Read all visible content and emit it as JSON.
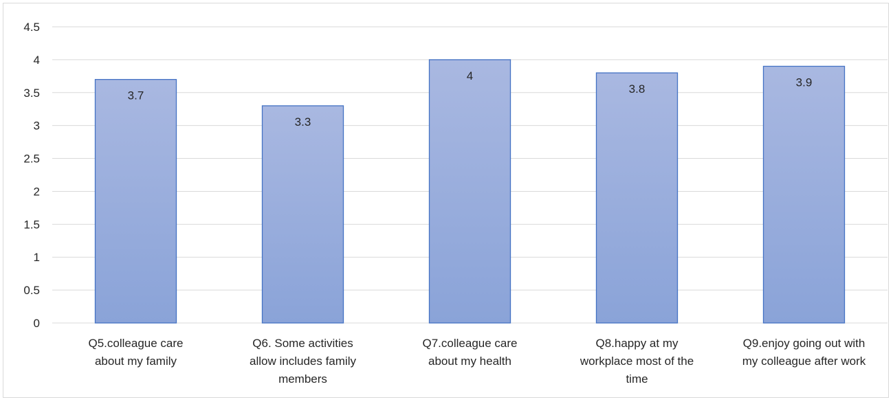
{
  "chart_data": {
    "type": "bar",
    "title": "",
    "xlabel": "",
    "ylabel": "",
    "ylim": [
      0,
      4.5
    ],
    "yticks": [
      "0",
      "0.5",
      "1",
      "1.5",
      "2",
      "2.5",
      "3",
      "3.5",
      "4",
      "4.5"
    ],
    "grid": true,
    "legend": "none",
    "categories": [
      [
        "Q5.colleague care",
        "about my family"
      ],
      [
        "Q6. Some activities",
        "allow includes family",
        "members"
      ],
      [
        "Q7.colleague care",
        "about my health"
      ],
      [
        "Q8.happy at my",
        "workplace most of the",
        "time"
      ],
      [
        "Q9.enjoy going out with",
        "my colleague after work"
      ]
    ],
    "values": [
      3.7,
      3.3,
      4,
      3.8,
      3.9
    ],
    "data_labels": [
      "3.7",
      "3.3",
      "4",
      "3.8",
      "3.9"
    ],
    "colors": {
      "bar_fill_top": "#a9b8e1",
      "bar_fill_bottom": "#8aa3d8",
      "bar_stroke": "#4472c4",
      "grid": "#d9d9d9",
      "text": "#262626"
    }
  }
}
